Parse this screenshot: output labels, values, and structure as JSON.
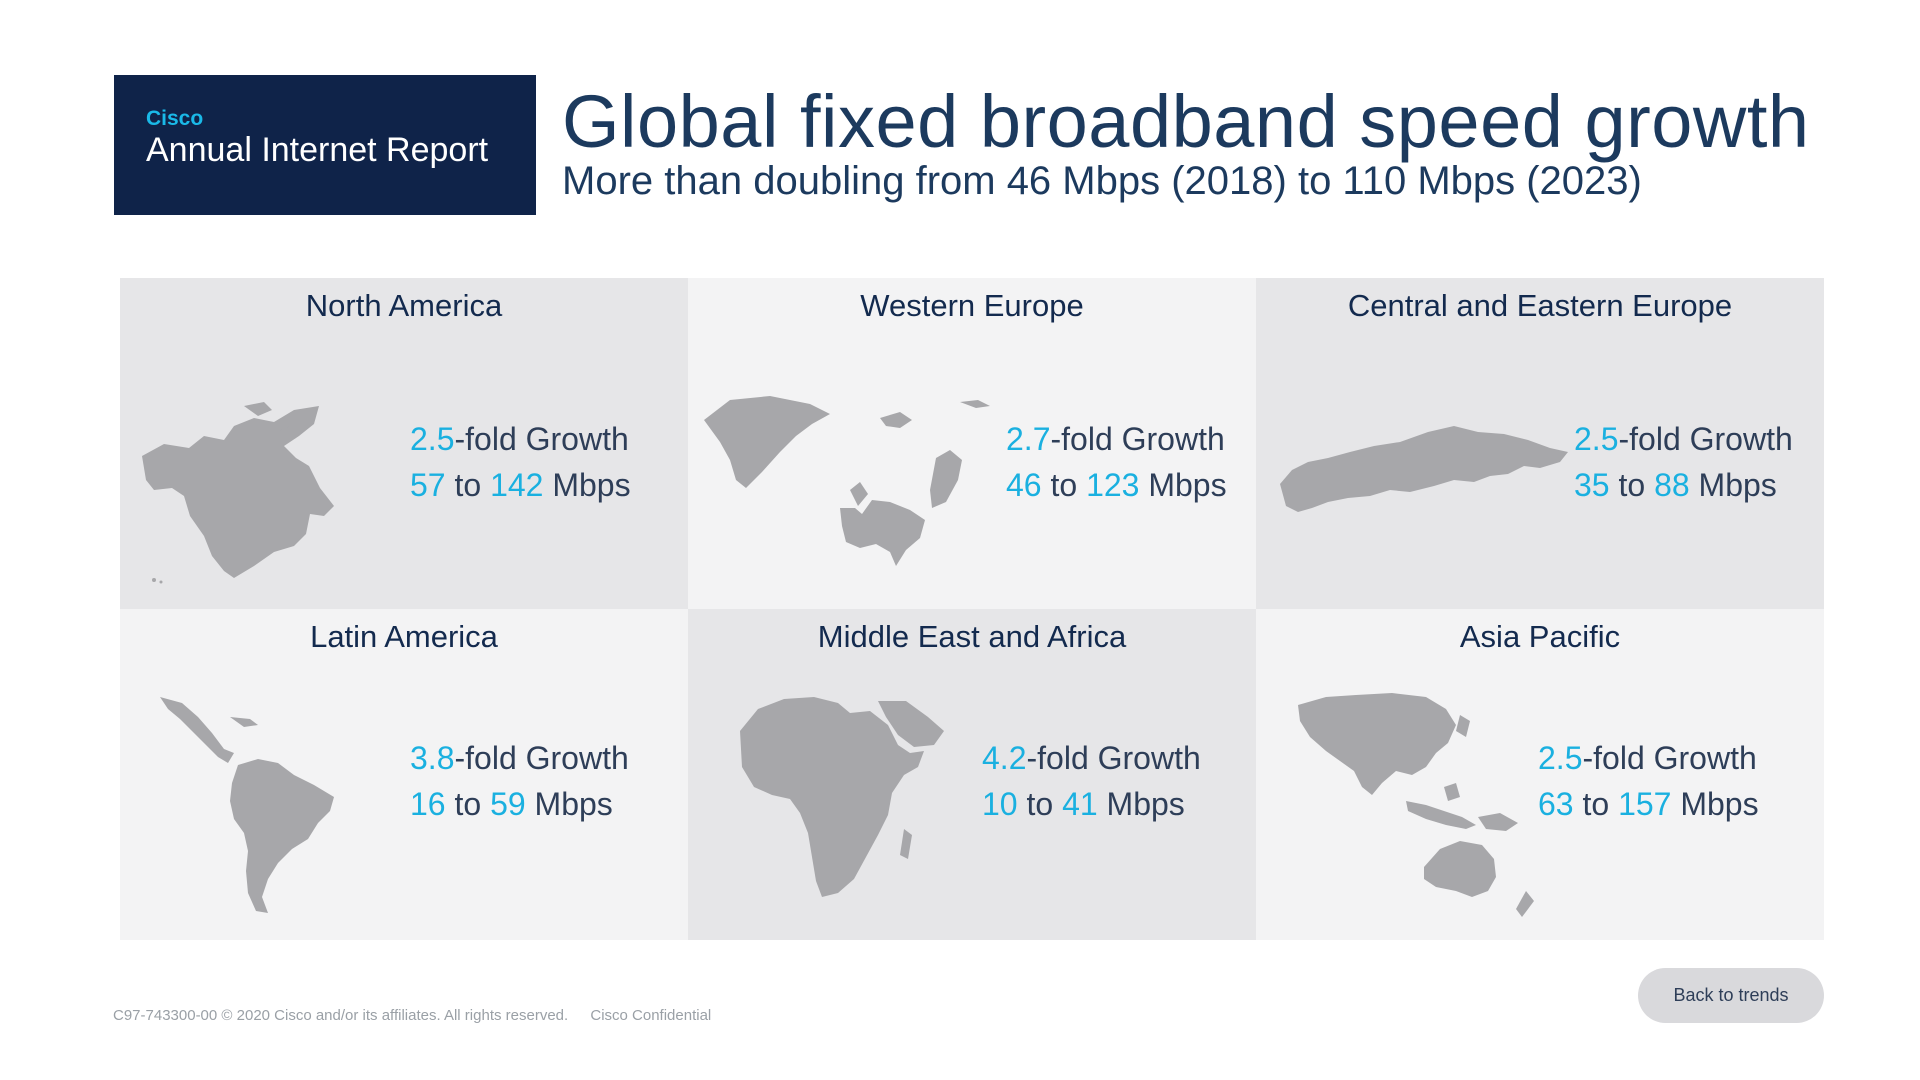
{
  "header": {
    "brand": "Cisco",
    "report": "Annual Internet Report",
    "title": "Global fixed broadband speed growth",
    "subtitle": "More than doubling from 46 Mbps (2018) to 110 Mbps (2023)"
  },
  "regions": [
    {
      "name": "North America",
      "fold": "2.5",
      "fold_suffix": "-fold Growth",
      "from": "57",
      "to_word": "to",
      "to": "142",
      "unit": "Mbps",
      "map_icon": "north-america-map"
    },
    {
      "name": "Western Europe",
      "fold": "2.7",
      "fold_suffix": "-fold Growth",
      "from": "46",
      "to_word": "to",
      "to": "123",
      "unit": "Mbps",
      "map_icon": "western-europe-map"
    },
    {
      "name": "Central and Eastern Europe",
      "fold": "2.5",
      "fold_suffix": "-fold Growth",
      "from": "35",
      "to_word": "to",
      "to": "88",
      "unit": "Mbps",
      "map_icon": "central-eastern-europe-map"
    },
    {
      "name": "Latin America",
      "fold": "3.8",
      "fold_suffix": "-fold Growth",
      "from": "16",
      "to_word": "to",
      "to": "59",
      "unit": "Mbps",
      "map_icon": "latin-america-map"
    },
    {
      "name": "Middle East and Africa",
      "fold": "4.2",
      "fold_suffix": "-fold Growth",
      "from": "10",
      "to_word": "to",
      "to": "41",
      "unit": "Mbps",
      "map_icon": "middle-east-africa-map"
    },
    {
      "name": "Asia Pacific",
      "fold": "2.5",
      "fold_suffix": "-fold Growth",
      "from": "63",
      "to_word": "to",
      "to": "157",
      "unit": "Mbps",
      "map_icon": "asia-pacific-map"
    }
  ],
  "footer": {
    "code": "C97-743300-00 © 2020  Cisco and/or its affiliates. All rights reserved.",
    "confidential": "Cisco Confidential"
  },
  "back_button": "Back to trends",
  "colors": {
    "brand_box": "#0f2349",
    "accent": "#1ab0e0",
    "title": "#1c3a5e",
    "map": "#a7a7aa",
    "cell_dark": "#e6e6e8",
    "cell_light": "#f3f3f4"
  }
}
